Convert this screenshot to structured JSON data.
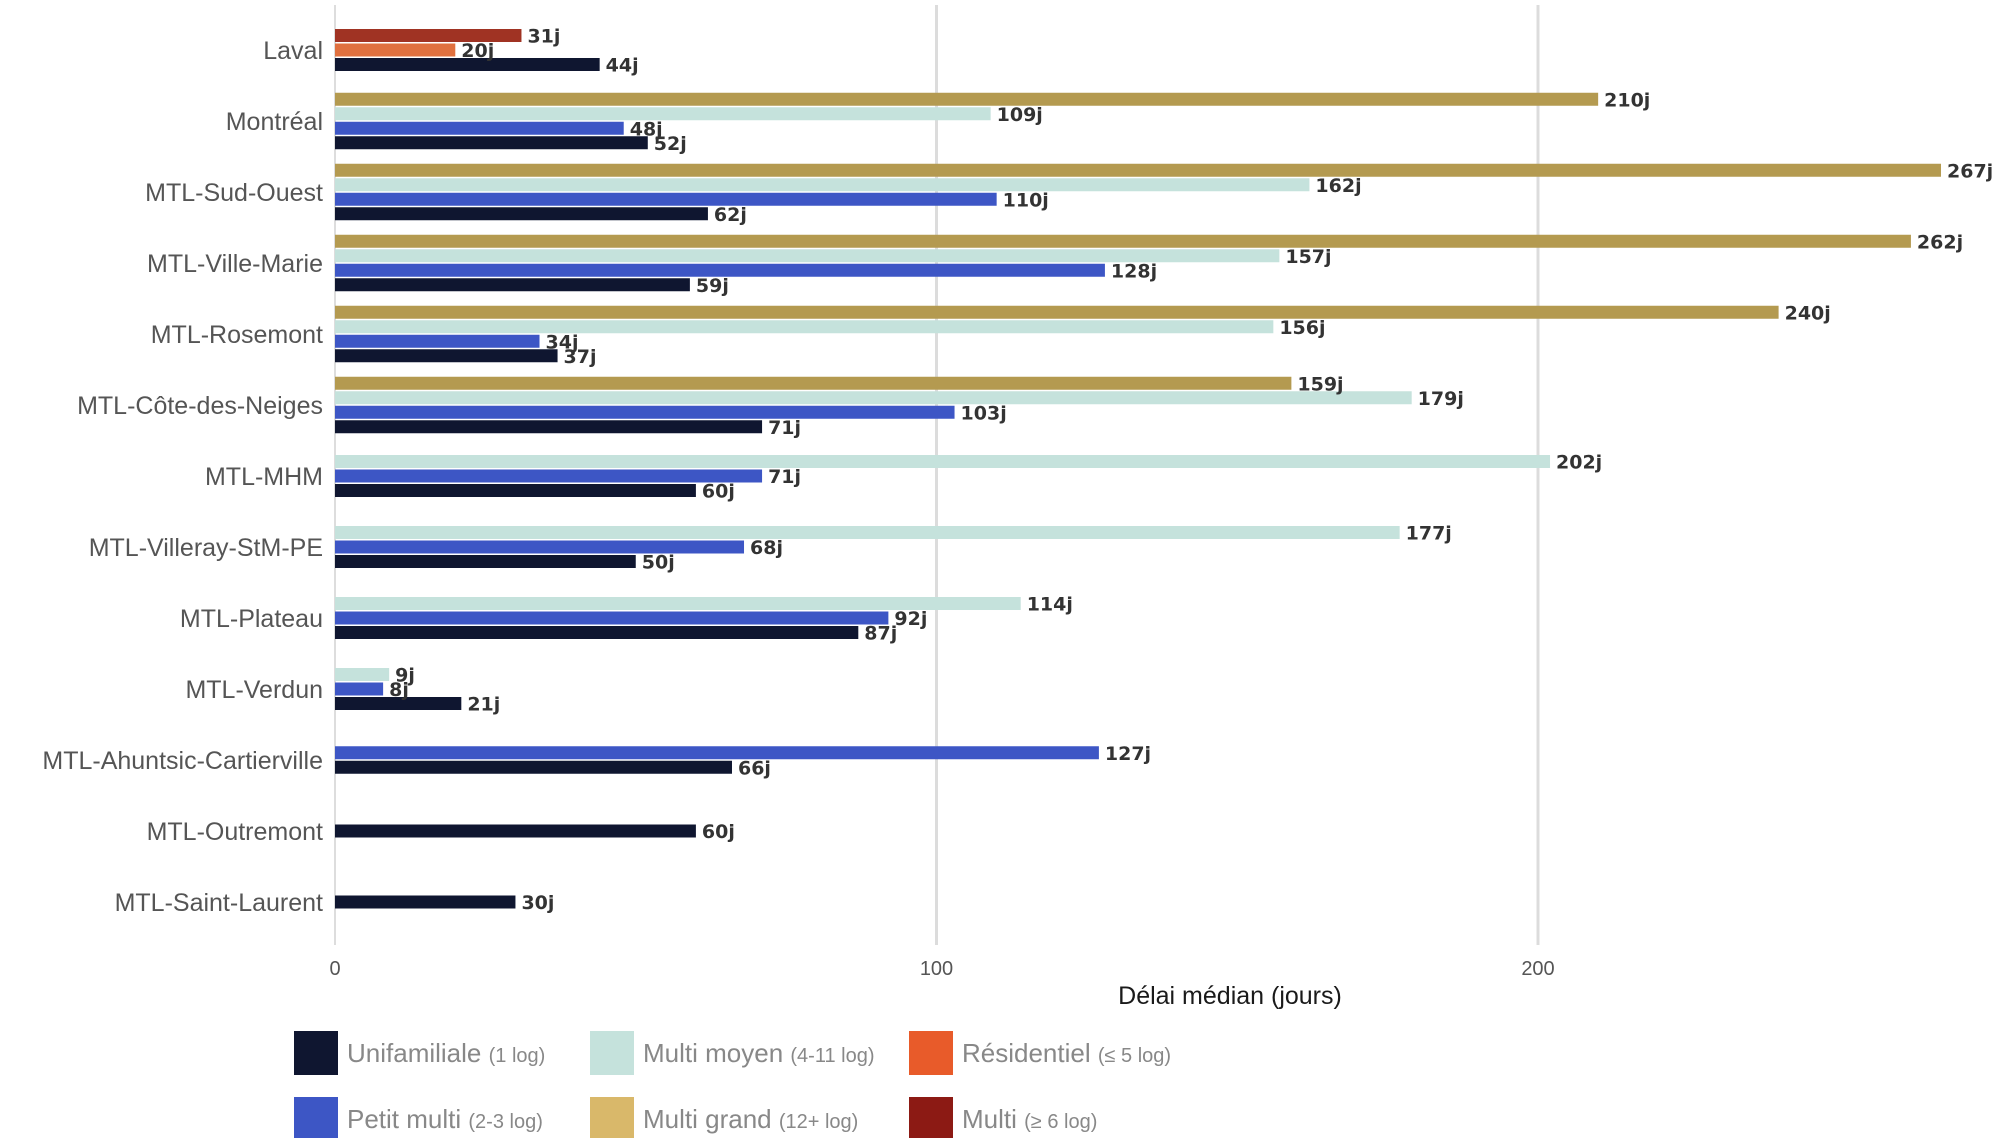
{
  "chart_data": {
    "type": "bar",
    "orientation": "horizontal",
    "xlabel": "Délai médian (jours)",
    "ylabel": "",
    "xlim": [
      0,
      270
    ],
    "xticks": [
      0,
      100,
      200
    ],
    "grid": "vertical",
    "legend_position": "bottom",
    "value_suffix": "j",
    "categories": [
      "Laval",
      "Montréal",
      "MTL-Sud-Ouest",
      "MTL-Ville-Marie",
      "MTL-Rosemont",
      "MTL-Côte-des-Neiges",
      "MTL-MHM",
      "MTL-Villeray-StM-PE",
      "MTL-Plateau",
      "MTL-Verdun",
      "MTL-Ahuntsic-Cartierville",
      "MTL-Outremont",
      "MTL-Saint-Laurent"
    ],
    "series": [
      {
        "name": "Unifamiliale",
        "sub": "(1 log)",
        "color": "#0f1630",
        "bar_color": "#0f1630",
        "values": [
          44,
          52,
          62,
          59,
          37,
          71,
          60,
          50,
          87,
          21,
          66,
          60,
          30
        ]
      },
      {
        "name": "Petit multi",
        "sub": "(2-3 log)",
        "color": "#3d56c5",
        "bar_color": "#3d56c5",
        "values": [
          null,
          48,
          110,
          128,
          34,
          103,
          71,
          68,
          92,
          8,
          127,
          null,
          null
        ]
      },
      {
        "name": "Multi moyen",
        "sub": "(4-11 log)",
        "color": "#c5e2dc",
        "bar_color": "#c5e2dc",
        "values": [
          null,
          109,
          162,
          157,
          156,
          179,
          202,
          177,
          114,
          9,
          null,
          null,
          null
        ]
      },
      {
        "name": "Multi grand",
        "sub": "(12+ log)",
        "color": "#d9b86a",
        "bar_color": "#b49a50",
        "values": [
          null,
          210,
          267,
          262,
          240,
          159,
          null,
          null,
          null,
          null,
          null,
          null,
          null
        ]
      },
      {
        "name": "Résidentiel",
        "sub": "(≤ 5 log)",
        "color": "#e85b2a",
        "bar_color": "#e0703f",
        "values": [
          20,
          null,
          null,
          null,
          null,
          null,
          null,
          null,
          null,
          null,
          null,
          null,
          null
        ]
      },
      {
        "name": "Multi",
        "sub": "(≥ 6 log)",
        "color": "#8c1a14",
        "bar_color": "#a03323",
        "values": [
          31,
          null,
          null,
          null,
          null,
          null,
          null,
          null,
          null,
          null,
          null,
          null,
          null
        ]
      }
    ]
  }
}
